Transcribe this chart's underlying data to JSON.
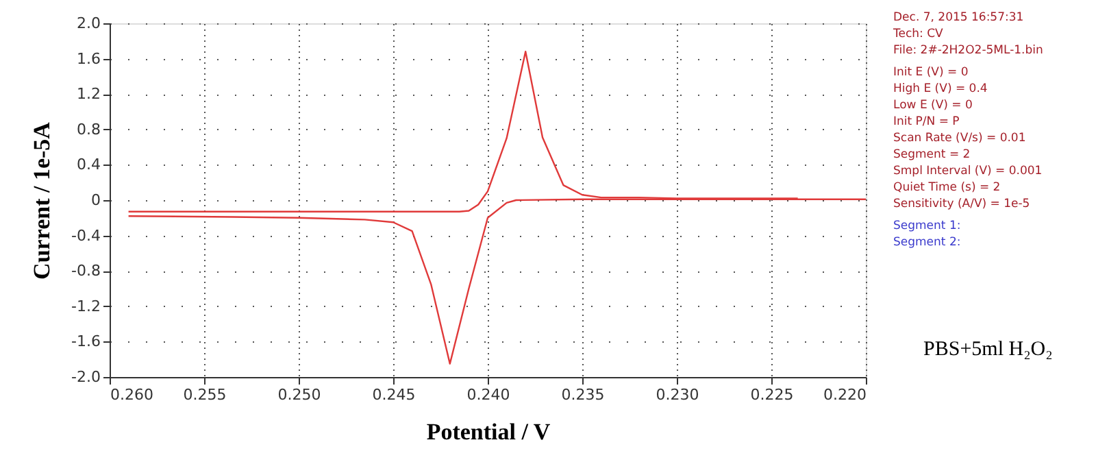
{
  "chart_data": {
    "type": "line",
    "xlabel": "Potential / V",
    "ylabel": "Current / 1e-5A",
    "series": [
      {
        "color": "#e03a3a",
        "x": [
          0.259,
          0.25,
          0.245,
          0.2415,
          0.241,
          0.2405,
          0.24,
          0.239,
          0.238,
          0.2371,
          0.236,
          0.235,
          0.234,
          0.232,
          0.23,
          0.2236
        ],
        "values": [
          -0.13,
          -0.13,
          -0.13,
          -0.13,
          -0.12,
          -0.05,
          0.1,
          0.7,
          1.68,
          0.71,
          0.17,
          0.06,
          0.03,
          0.03,
          0.02,
          0.02
        ]
      },
      {
        "color": "#e03a3a",
        "x": [
          0.259,
          0.2535,
          0.25,
          0.2465,
          0.245,
          0.244,
          0.243,
          0.242,
          0.241,
          0.24,
          0.239,
          0.2385,
          0.235,
          0.23,
          0.22
        ],
        "values": [
          -0.18,
          -0.19,
          -0.2,
          -0.22,
          -0.25,
          -0.35,
          -0.95,
          -1.85,
          -1.0,
          -0.2,
          -0.03,
          0.0,
          0.01,
          0.01,
          0.01
        ]
      }
    ],
    "xlim": [
      0.26,
      0.22
    ],
    "xticks": [
      {
        "value": 0.26,
        "label": "0.260"
      },
      0.255,
      {
        "value": 0.25,
        "label": "0.250"
      },
      0.245,
      {
        "value": 0.24,
        "label": "0.240"
      },
      0.235,
      {
        "value": 0.23,
        "label": "0.230"
      },
      0.225,
      {
        "value": 0.22,
        "label": "0.220"
      }
    ],
    "ylim": [
      -2.0,
      2.0
    ],
    "yticks": [
      {
        "value": -2.0,
        "label": "-2.0"
      },
      -1.6,
      -1.2,
      -0.8,
      -0.4,
      0,
      0.4,
      0.8,
      1.2,
      1.6,
      {
        "value": 2.0,
        "label": "2.0"
      }
    ],
    "grid": true,
    "annotations": [
      "Dec. 7, 2015   16:57:31",
      "Tech: CV",
      "File: 2#-2H2O2-5ML-1.bin",
      "Init E (V) = 0",
      "High E (V) = 0.4",
      "Low E (V) = 0",
      "Init P/N = P",
      "Scan Rate (V/s) = 0.01",
      "Segment = 2",
      "Smpl Interval (V) = 0.001",
      "Quiet Time (s) = 2",
      "Sensitivity (A/V) = 1e-5",
      "Segment 1:",
      "Segment 2:",
      "PBS+5ml H₂O₂"
    ]
  }
}
